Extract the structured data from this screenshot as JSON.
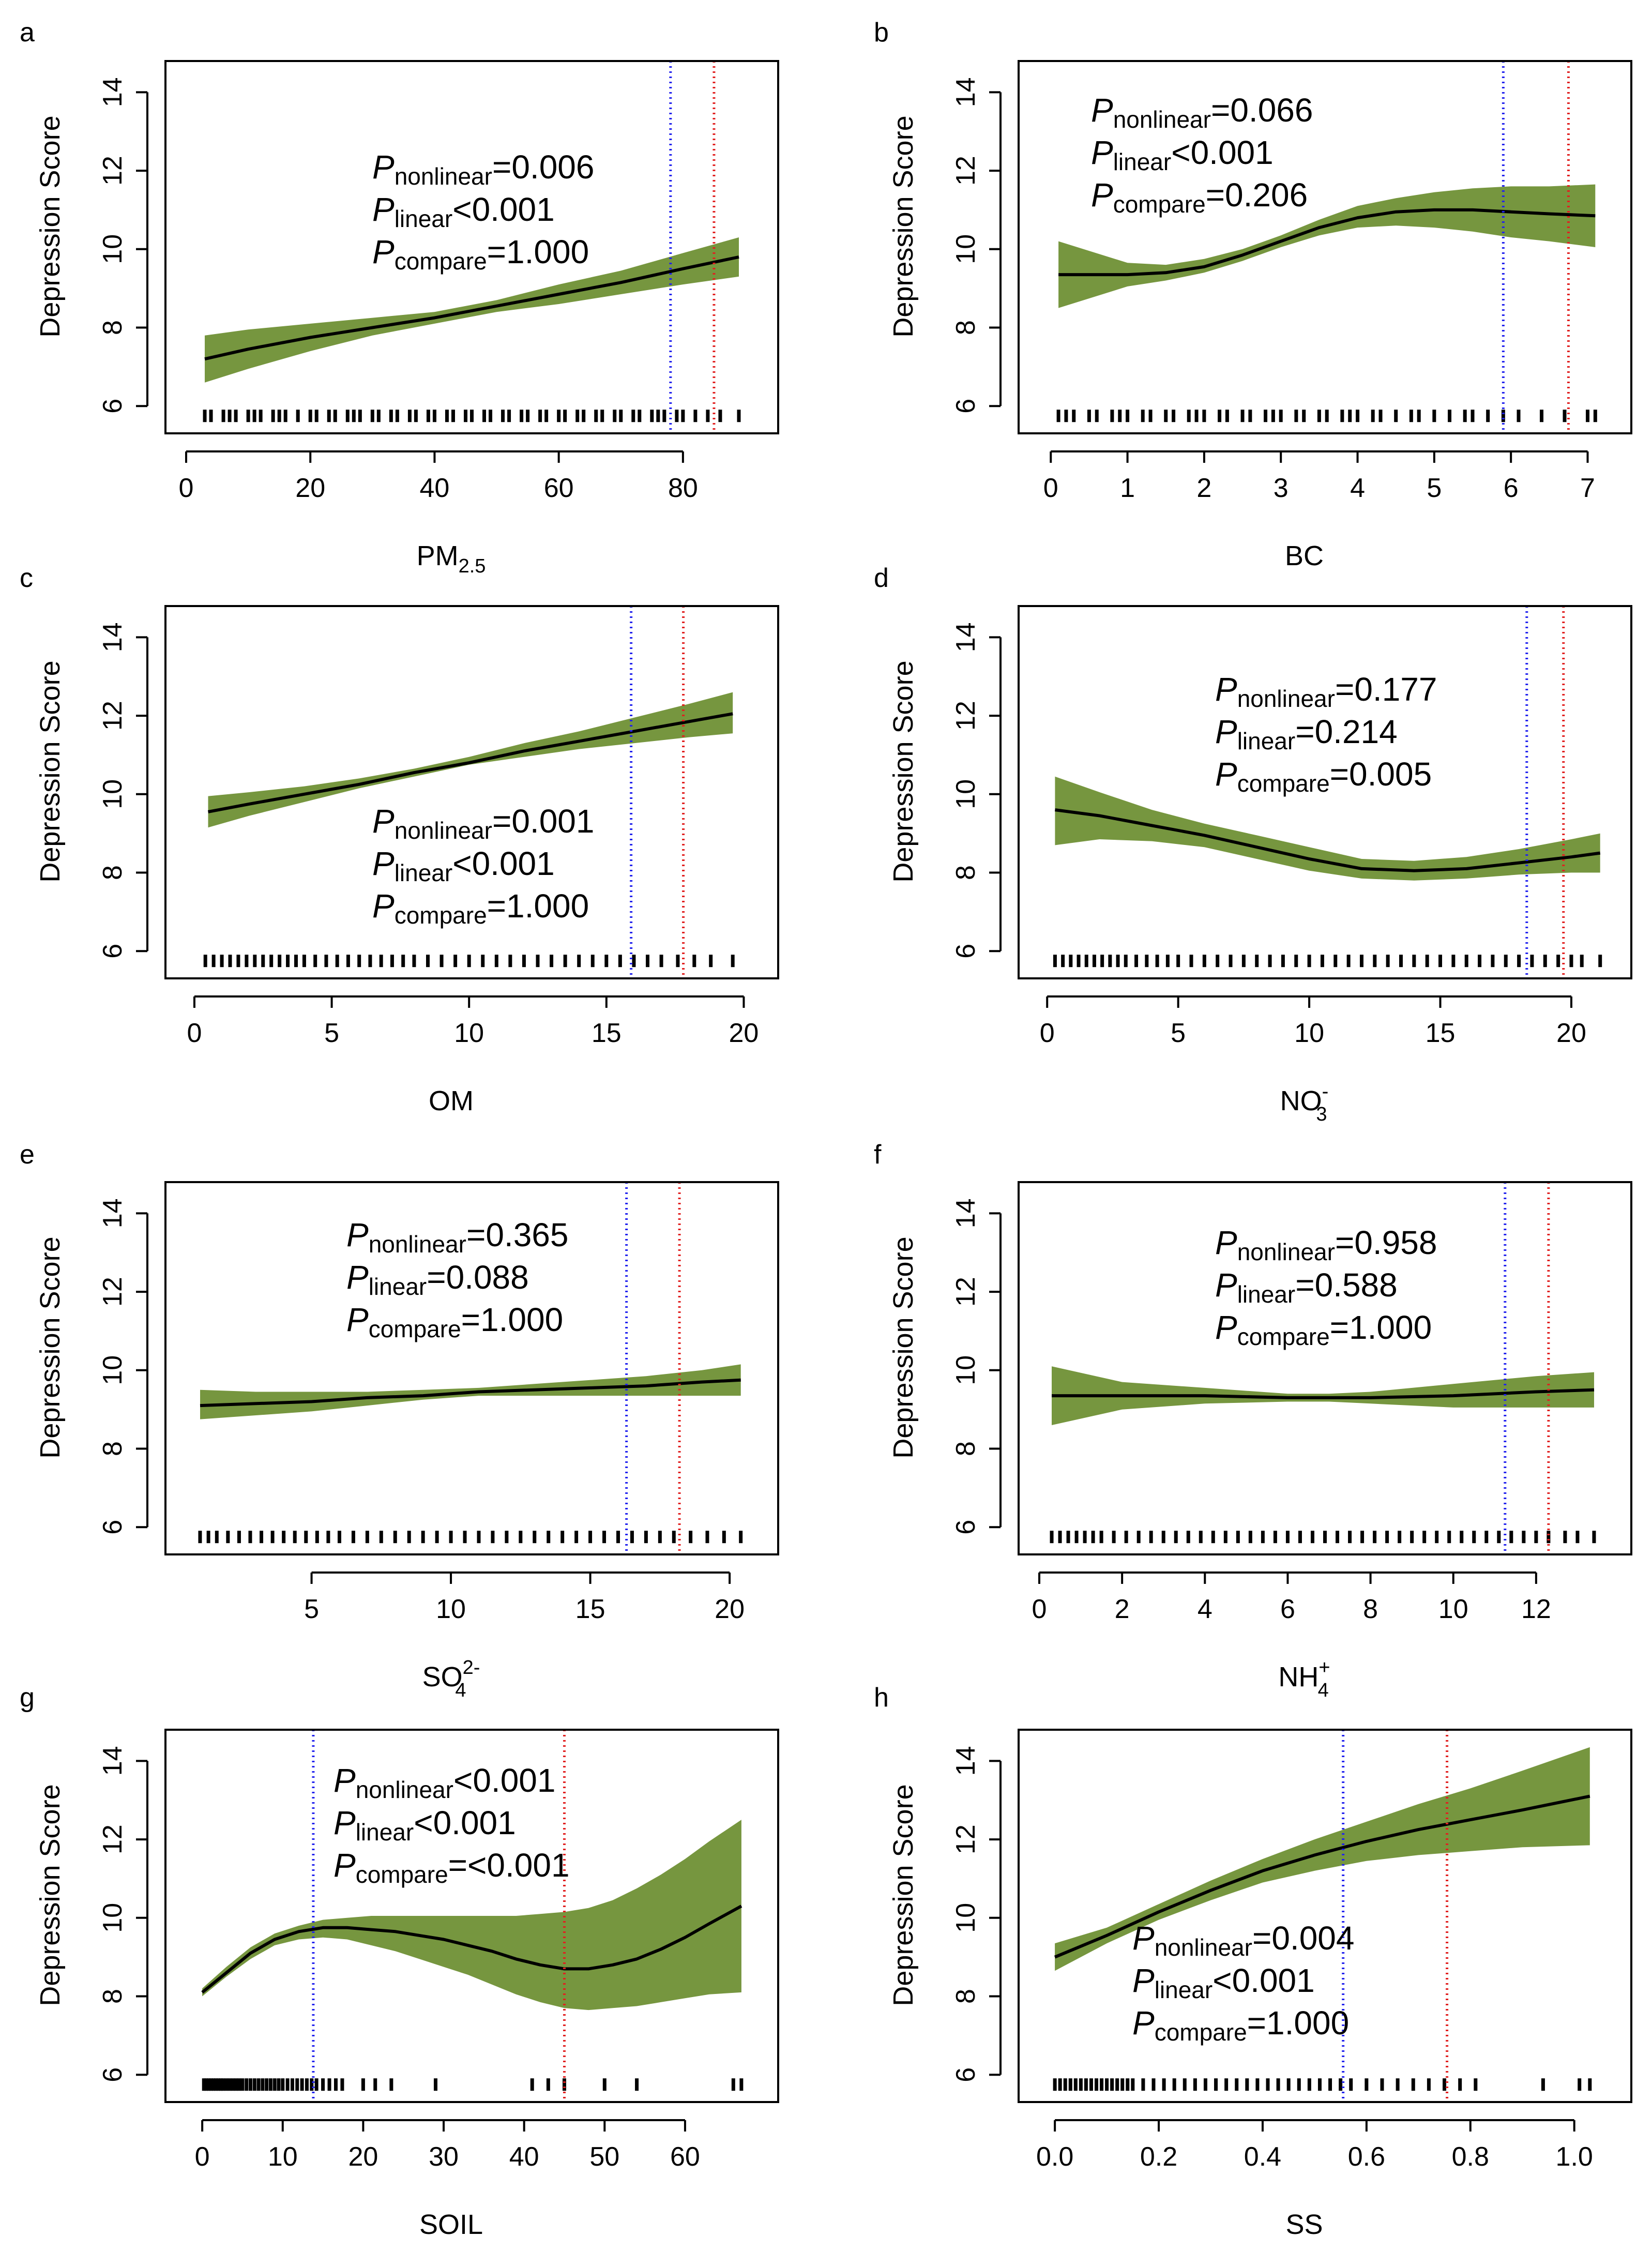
{
  "figure": {
    "y_axis_label": "Depression Score",
    "band_color": "#76963F",
    "curve_color": "#000000",
    "blue_line_color": "#2222EE",
    "red_line_color": "#E12020"
  },
  "chart_data": [
    {
      "panel": "a",
      "type": "line",
      "xlabel": "PM",
      "xlabel_sub": "2.5",
      "xlabel_sup": "",
      "ylabel": "Depression Score",
      "xlim": [
        0,
        92
      ],
      "ylim": [
        5.7,
        14.4
      ],
      "xticks": [
        0,
        20,
        40,
        60,
        80
      ],
      "yticks": [
        6,
        8,
        10,
        12,
        14
      ],
      "x": [
        3,
        10,
        20,
        30,
        40,
        50,
        60,
        70,
        80,
        89
      ],
      "y": [
        7.2,
        7.45,
        7.75,
        8.0,
        8.25,
        8.55,
        8.85,
        9.15,
        9.5,
        9.8
      ],
      "lower": [
        6.6,
        6.95,
        7.4,
        7.8,
        8.1,
        8.4,
        8.6,
        8.85,
        9.1,
        9.3
      ],
      "upper": [
        7.8,
        7.95,
        8.1,
        8.25,
        8.4,
        8.7,
        9.1,
        9.45,
        9.9,
        10.3
      ],
      "vline_blue": 78,
      "vline_red": 85,
      "rug": [
        3,
        4,
        6,
        7,
        8,
        10,
        11,
        12,
        14,
        15,
        16,
        18,
        20,
        21,
        23,
        24,
        26,
        27,
        28,
        30,
        31,
        33,
        34,
        36,
        37,
        39,
        40,
        42,
        43,
        45,
        46,
        48,
        49,
        51,
        52,
        54,
        55,
        57,
        58,
        60,
        61,
        63,
        64,
        66,
        67,
        69,
        70,
        72,
        73,
        75,
        76,
        77,
        79,
        80,
        82,
        84,
        86,
        89
      ],
      "annotations": [
        {
          "p": "P",
          "sub": "nonlinear",
          "val": "=0.006"
        },
        {
          "p": "P",
          "sub": "linear",
          "val": "<0.001"
        },
        {
          "p": "P",
          "sub": "compare",
          "val": "=1.000"
        }
      ]
    },
    {
      "panel": "b",
      "type": "line",
      "xlabel": "BC",
      "xlabel_sub": "",
      "xlabel_sup": "",
      "ylabel": "Depression Score",
      "xlim": [
        -0.15,
        7.3
      ],
      "ylim": [
        5.7,
        14.4
      ],
      "xticks": [
        0,
        1,
        2,
        3,
        4,
        5,
        6,
        7
      ],
      "yticks": [
        6,
        8,
        10,
        12,
        14
      ],
      "x": [
        0.1,
        1.0,
        1.5,
        2.0,
        2.5,
        3.0,
        3.5,
        4.0,
        4.5,
        5.0,
        5.5,
        6.0,
        6.5,
        7.1
      ],
      "y": [
        9.35,
        9.35,
        9.4,
        9.55,
        9.85,
        10.2,
        10.55,
        10.8,
        10.95,
        11.0,
        11.0,
        10.95,
        10.9,
        10.85
      ],
      "lower": [
        8.5,
        9.05,
        9.2,
        9.4,
        9.7,
        10.05,
        10.35,
        10.55,
        10.6,
        10.55,
        10.45,
        10.3,
        10.2,
        10.05
      ],
      "upper": [
        10.2,
        9.65,
        9.6,
        9.75,
        10.0,
        10.35,
        10.75,
        11.1,
        11.3,
        11.45,
        11.55,
        11.6,
        11.6,
        11.65
      ],
      "vline_blue": 5.9,
      "vline_red": 6.75,
      "rug": [
        0.1,
        0.2,
        0.3,
        0.5,
        0.6,
        0.8,
        0.9,
        1.0,
        1.2,
        1.3,
        1.5,
        1.6,
        1.8,
        1.9,
        2.0,
        2.2,
        2.3,
        2.5,
        2.6,
        2.8,
        2.9,
        3.0,
        3.2,
        3.3,
        3.5,
        3.6,
        3.8,
        3.9,
        4.0,
        4.2,
        4.3,
        4.5,
        4.7,
        4.8,
        5.0,
        5.2,
        5.4,
        5.5,
        5.7,
        5.9,
        6.1,
        6.4,
        6.7,
        7.0,
        7.1
      ],
      "annotations": [
        {
          "p": "P",
          "sub": "nonlinear",
          "val": "=0.066"
        },
        {
          "p": "P",
          "sub": "linear",
          "val": "<0.001"
        },
        {
          "p": "P",
          "sub": "compare",
          "val": "=0.206"
        }
      ]
    },
    {
      "panel": "c",
      "type": "line",
      "xlabel": "OM",
      "xlabel_sub": "",
      "xlabel_sup": "",
      "ylabel": "Depression Score",
      "xlim": [
        -0.3,
        20.5
      ],
      "ylim": [
        5.7,
        14.4
      ],
      "xticks": [
        0,
        5,
        10,
        15,
        20
      ],
      "yticks": [
        6,
        8,
        10,
        12,
        14
      ],
      "x": [
        0.5,
        2,
        4,
        6,
        8,
        10,
        12,
        14,
        16,
        18,
        19.6
      ],
      "y": [
        9.55,
        9.75,
        10.0,
        10.25,
        10.55,
        10.8,
        11.1,
        11.35,
        11.6,
        11.85,
        12.05
      ],
      "lower": [
        9.15,
        9.45,
        9.8,
        10.15,
        10.45,
        10.75,
        10.95,
        11.15,
        11.3,
        11.45,
        11.55
      ],
      "upper": [
        9.95,
        10.05,
        10.2,
        10.4,
        10.65,
        10.95,
        11.3,
        11.6,
        11.95,
        12.3,
        12.6
      ],
      "vline_blue": 15.9,
      "vline_red": 17.8,
      "rug": [
        0.4,
        0.7,
        1.0,
        1.3,
        1.6,
        1.9,
        2.2,
        2.5,
        2.8,
        3.1,
        3.4,
        3.7,
        4.0,
        4.4,
        4.8,
        5.2,
        5.6,
        6.0,
        6.4,
        6.8,
        7.2,
        7.6,
        8.0,
        8.5,
        9.0,
        9.5,
        10.0,
        10.5,
        11.0,
        11.5,
        12.0,
        12.5,
        13.0,
        13.5,
        14.0,
        14.5,
        15.0,
        15.5,
        16.0,
        16.5,
        17.0,
        17.6,
        18.2,
        18.8,
        19.6
      ],
      "annotations": [
        {
          "p": "P",
          "sub": "nonlinear",
          "val": "=0.001"
        },
        {
          "p": "P",
          "sub": "linear",
          "val": "<0.001"
        },
        {
          "p": "P",
          "sub": "compare",
          "val": "=1.000"
        }
      ]
    },
    {
      "panel": "d",
      "type": "line",
      "xlabel": "NO",
      "xlabel_sub": "3",
      "xlabel_sup": "-",
      "ylabel": "Depression Score",
      "xlim": [
        -0.3,
        21.5
      ],
      "ylim": [
        5.7,
        14.4
      ],
      "xticks": [
        0,
        5,
        10,
        15,
        20
      ],
      "yticks": [
        6,
        8,
        10,
        12,
        14
      ],
      "x": [
        0.3,
        2,
        4,
        6,
        8,
        10,
        12,
        14,
        16,
        18,
        20,
        21.1
      ],
      "y": [
        9.6,
        9.45,
        9.2,
        8.95,
        8.65,
        8.35,
        8.1,
        8.05,
        8.1,
        8.25,
        8.4,
        8.5
      ],
      "lower": [
        8.7,
        8.85,
        8.8,
        8.65,
        8.35,
        8.05,
        7.85,
        7.8,
        7.85,
        7.95,
        8.0,
        8.0
      ],
      "upper": [
        10.45,
        10.05,
        9.6,
        9.25,
        8.95,
        8.65,
        8.35,
        8.3,
        8.4,
        8.6,
        8.85,
        9.0
      ],
      "vline_blue": 18.3,
      "vline_red": 19.7,
      "rug": [
        0.3,
        0.6,
        0.9,
        1.2,
        1.5,
        1.8,
        2.1,
        2.4,
        2.7,
        3.0,
        3.4,
        3.8,
        4.2,
        4.6,
        5.0,
        5.5,
        6.0,
        6.5,
        7.0,
        7.5,
        8.0,
        8.5,
        9.0,
        9.5,
        10.0,
        10.5,
        11.0,
        11.5,
        12.0,
        12.5,
        13.0,
        13.5,
        14.0,
        14.5,
        15.0,
        15.5,
        16.0,
        16.5,
        17.0,
        17.5,
        18.0,
        18.5,
        19.0,
        19.5,
        20.0,
        20.4,
        21.1
      ],
      "annotations": [
        {
          "p": "P",
          "sub": "nonlinear",
          "val": "=0.177"
        },
        {
          "p": "P",
          "sub": "linear",
          "val": "=0.214"
        },
        {
          "p": "P",
          "sub": "compare",
          "val": "=0.005"
        }
      ]
    },
    {
      "panel": "e",
      "type": "line",
      "xlabel": "SO",
      "xlabel_sub": "4",
      "xlabel_sup": "2-",
      "ylabel": "Depression Score",
      "xlim": [
        0.5,
        21.0
      ],
      "ylim": [
        5.7,
        14.4
      ],
      "xticks": [
        5,
        10,
        15,
        20
      ],
      "yticks": [
        6,
        8,
        10,
        12,
        14
      ],
      "x": [
        1.0,
        3,
        5,
        7,
        9,
        11,
        13,
        15,
        17,
        19,
        20.4
      ],
      "y": [
        9.1,
        9.15,
        9.2,
        9.3,
        9.35,
        9.45,
        9.5,
        9.55,
        9.6,
        9.7,
        9.75
      ],
      "lower": [
        8.75,
        8.85,
        8.95,
        9.1,
        9.25,
        9.35,
        9.35,
        9.35,
        9.35,
        9.35,
        9.35
      ],
      "upper": [
        9.5,
        9.45,
        9.45,
        9.45,
        9.5,
        9.55,
        9.65,
        9.75,
        9.85,
        10.0,
        10.15
      ],
      "vline_blue": 16.3,
      "vline_red": 18.2,
      "rug": [
        1.0,
        1.3,
        1.6,
        2.0,
        2.4,
        2.8,
        3.2,
        3.6,
        4.0,
        4.4,
        4.8,
        5.2,
        5.6,
        6.0,
        6.5,
        7.0,
        7.5,
        8.0,
        8.5,
        9.0,
        9.5,
        10.0,
        10.5,
        11.0,
        11.5,
        12.0,
        12.5,
        13.0,
        13.5,
        14.0,
        14.5,
        15.0,
        15.5,
        16.0,
        16.5,
        17.0,
        17.5,
        18.0,
        18.6,
        19.2,
        19.8,
        20.4
      ],
      "annotations": [
        {
          "p": "P",
          "sub": "nonlinear",
          "val": "=0.365"
        },
        {
          "p": "P",
          "sub": "linear",
          "val": "=0.088"
        },
        {
          "p": "P",
          "sub": "compare",
          "val": "=1.000"
        }
      ]
    },
    {
      "panel": "f",
      "type": "line",
      "xlabel": "NH",
      "xlabel_sub": "4",
      "xlabel_sup": "+",
      "ylabel": "Depression Score",
      "xlim": [
        0.0,
        13.8
      ],
      "ylim": [
        5.7,
        14.4
      ],
      "xticks": [
        0,
        2,
        4,
        6,
        8,
        10,
        12
      ],
      "yticks": [
        6,
        8,
        10,
        12,
        14
      ],
      "x": [
        0.3,
        2,
        4,
        6,
        7,
        8,
        10,
        12,
        13.4
      ],
      "y": [
        9.35,
        9.35,
        9.35,
        9.3,
        9.3,
        9.3,
        9.35,
        9.45,
        9.5
      ],
      "lower": [
        8.6,
        9.0,
        9.15,
        9.2,
        9.2,
        9.15,
        9.05,
        9.05,
        9.05
      ],
      "upper": [
        10.1,
        9.7,
        9.55,
        9.4,
        9.4,
        9.45,
        9.65,
        9.85,
        9.95
      ],
      "vline_blue": 11.25,
      "vline_red": 12.3,
      "rug": [
        0.3,
        0.5,
        0.7,
        0.9,
        1.1,
        1.3,
        1.5,
        1.8,
        2.1,
        2.4,
        2.7,
        3.0,
        3.3,
        3.6,
        3.9,
        4.2,
        4.5,
        4.8,
        5.1,
        5.4,
        5.7,
        6.0,
        6.3,
        6.6,
        6.9,
        7.2,
        7.5,
        7.8,
        8.1,
        8.4,
        8.7,
        9.0,
        9.3,
        9.6,
        9.9,
        10.2,
        10.5,
        10.8,
        11.1,
        11.4,
        11.7,
        12.0,
        12.3,
        12.7,
        13.0,
        13.4
      ],
      "annotations": [
        {
          "p": "P",
          "sub": "nonlinear",
          "val": "=0.958"
        },
        {
          "p": "P",
          "sub": "linear",
          "val": "=0.588"
        },
        {
          "p": "P",
          "sub": "compare",
          "val": "=1.000"
        }
      ]
    },
    {
      "panel": "g",
      "type": "line",
      "xlabel": "SOIL",
      "xlabel_sub": "",
      "xlabel_sup": "",
      "ylabel": "Depression Score",
      "xlim": [
        -2,
        69
      ],
      "ylim": [
        5.7,
        14.4
      ],
      "xticks": [
        0,
        10,
        20,
        30,
        40,
        50,
        60
      ],
      "yticks": [
        6,
        8,
        10,
        12,
        14
      ],
      "x": [
        0,
        3,
        6,
        9,
        12,
        15,
        18,
        21,
        24,
        27,
        30,
        33,
        36,
        39,
        42,
        45,
        48,
        51,
        54,
        57,
        60,
        63,
        67
      ],
      "y": [
        8.1,
        8.6,
        9.1,
        9.45,
        9.65,
        9.75,
        9.75,
        9.7,
        9.65,
        9.55,
        9.45,
        9.3,
        9.15,
        8.95,
        8.8,
        8.7,
        8.7,
        8.8,
        8.95,
        9.2,
        9.5,
        9.85,
        10.3
      ],
      "lower": [
        8.0,
        8.5,
        8.95,
        9.3,
        9.45,
        9.5,
        9.45,
        9.3,
        9.15,
        8.95,
        8.75,
        8.55,
        8.3,
        8.05,
        7.85,
        7.7,
        7.65,
        7.7,
        7.75,
        7.85,
        7.95,
        8.05,
        8.1
      ],
      "upper": [
        8.2,
        8.75,
        9.25,
        9.6,
        9.8,
        9.95,
        10.0,
        10.05,
        10.05,
        10.05,
        10.05,
        10.05,
        10.05,
        10.05,
        10.1,
        10.15,
        10.25,
        10.45,
        10.75,
        11.1,
        11.5,
        11.95,
        12.5
      ],
      "vline_blue": 13.8,
      "vline_red": 45,
      "rug": [
        0.2,
        0.5,
        0.8,
        1.1,
        1.4,
        1.7,
        2.0,
        2.3,
        2.6,
        3.0,
        3.4,
        3.8,
        4.2,
        4.6,
        5.0,
        5.5,
        6.0,
        6.5,
        7.0,
        7.5,
        8.0,
        8.5,
        9.0,
        9.5,
        10.0,
        10.6,
        11.2,
        11.8,
        12.4,
        13.0,
        13.6,
        14.2,
        15.0,
        15.8,
        16.6,
        17.4,
        20,
        21.5,
        23.5,
        29,
        41,
        43,
        45,
        50,
        54,
        66,
        67
      ],
      "annotations": [
        {
          "p": "P",
          "sub": "nonlinear",
          "val": "<0.001"
        },
        {
          "p": "P",
          "sub": "linear",
          "val": "<0.001"
        },
        {
          "p": "P",
          "sub": "compare",
          "val": "=<0.001"
        }
      ]
    },
    {
      "panel": "h",
      "type": "line",
      "xlabel": "SS",
      "xlabel_sub": "",
      "xlabel_sup": "",
      "ylabel": "Depression Score",
      "xlim": [
        -0.03,
        1.07
      ],
      "ylim": [
        5.7,
        14.4
      ],
      "xticks": [
        "0.0",
        "0.2",
        "0.4",
        "0.6",
        "0.8",
        "1.0"
      ],
      "yticks": [
        6,
        8,
        10,
        12,
        14
      ],
      "x": [
        0.0,
        0.1,
        0.2,
        0.3,
        0.4,
        0.5,
        0.6,
        0.7,
        0.8,
        0.9,
        1.03
      ],
      "y": [
        9.0,
        9.55,
        10.15,
        10.7,
        11.2,
        11.6,
        11.95,
        12.25,
        12.5,
        12.75,
        13.1
      ],
      "lower": [
        8.65,
        9.35,
        9.95,
        10.45,
        10.9,
        11.2,
        11.45,
        11.6,
        11.7,
        11.8,
        11.85
      ],
      "upper": [
        9.35,
        9.75,
        10.35,
        10.95,
        11.5,
        12.0,
        12.45,
        12.9,
        13.3,
        13.75,
        14.35
      ],
      "vline_blue": 0.555,
      "vline_red": 0.755,
      "rug": [
        0.0,
        0.01,
        0.02,
        0.03,
        0.04,
        0.05,
        0.06,
        0.07,
        0.08,
        0.09,
        0.1,
        0.11,
        0.12,
        0.13,
        0.14,
        0.15,
        0.17,
        0.19,
        0.21,
        0.23,
        0.25,
        0.27,
        0.29,
        0.31,
        0.33,
        0.35,
        0.37,
        0.39,
        0.41,
        0.43,
        0.45,
        0.47,
        0.49,
        0.51,
        0.53,
        0.55,
        0.57,
        0.6,
        0.63,
        0.66,
        0.69,
        0.72,
        0.75,
        0.78,
        0.81,
        0.94,
        1.01,
        1.03
      ],
      "annotations": [
        {
          "p": "P",
          "sub": "nonlinear",
          "val": "=0.004"
        },
        {
          "p": "P",
          "sub": "linear",
          "val": "<0.001"
        },
        {
          "p": "P",
          "sub": "compare",
          "val": "=1.000"
        }
      ]
    }
  ]
}
